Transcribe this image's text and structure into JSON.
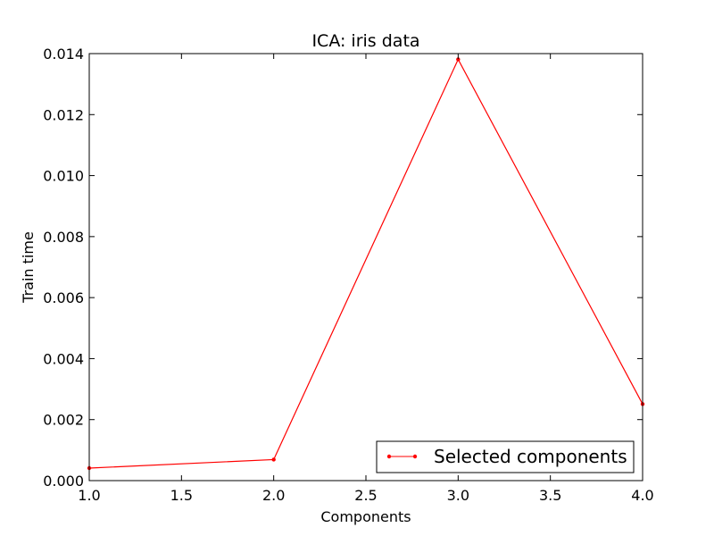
{
  "chart_data": {
    "type": "line",
    "title": "ICA: iris data",
    "xlabel": "Components",
    "ylabel": "Train time",
    "xlim": [
      1.0,
      4.0
    ],
    "ylim": [
      0.0,
      0.014
    ],
    "x_ticks": [
      "1.0",
      "1.5",
      "2.0",
      "2.5",
      "3.0",
      "3.5",
      "4.0"
    ],
    "y_ticks": [
      "0.000",
      "0.002",
      "0.004",
      "0.006",
      "0.008",
      "0.010",
      "0.012",
      "0.014"
    ],
    "grid": false,
    "legend_placement": "lower-right",
    "series": [
      {
        "name": "Selected components",
        "color": "#ff0000",
        "marker": "point",
        "x": [
          1,
          2,
          3,
          4
        ],
        "y": [
          0.00041,
          0.00069,
          0.01381,
          0.00251
        ]
      }
    ]
  }
}
